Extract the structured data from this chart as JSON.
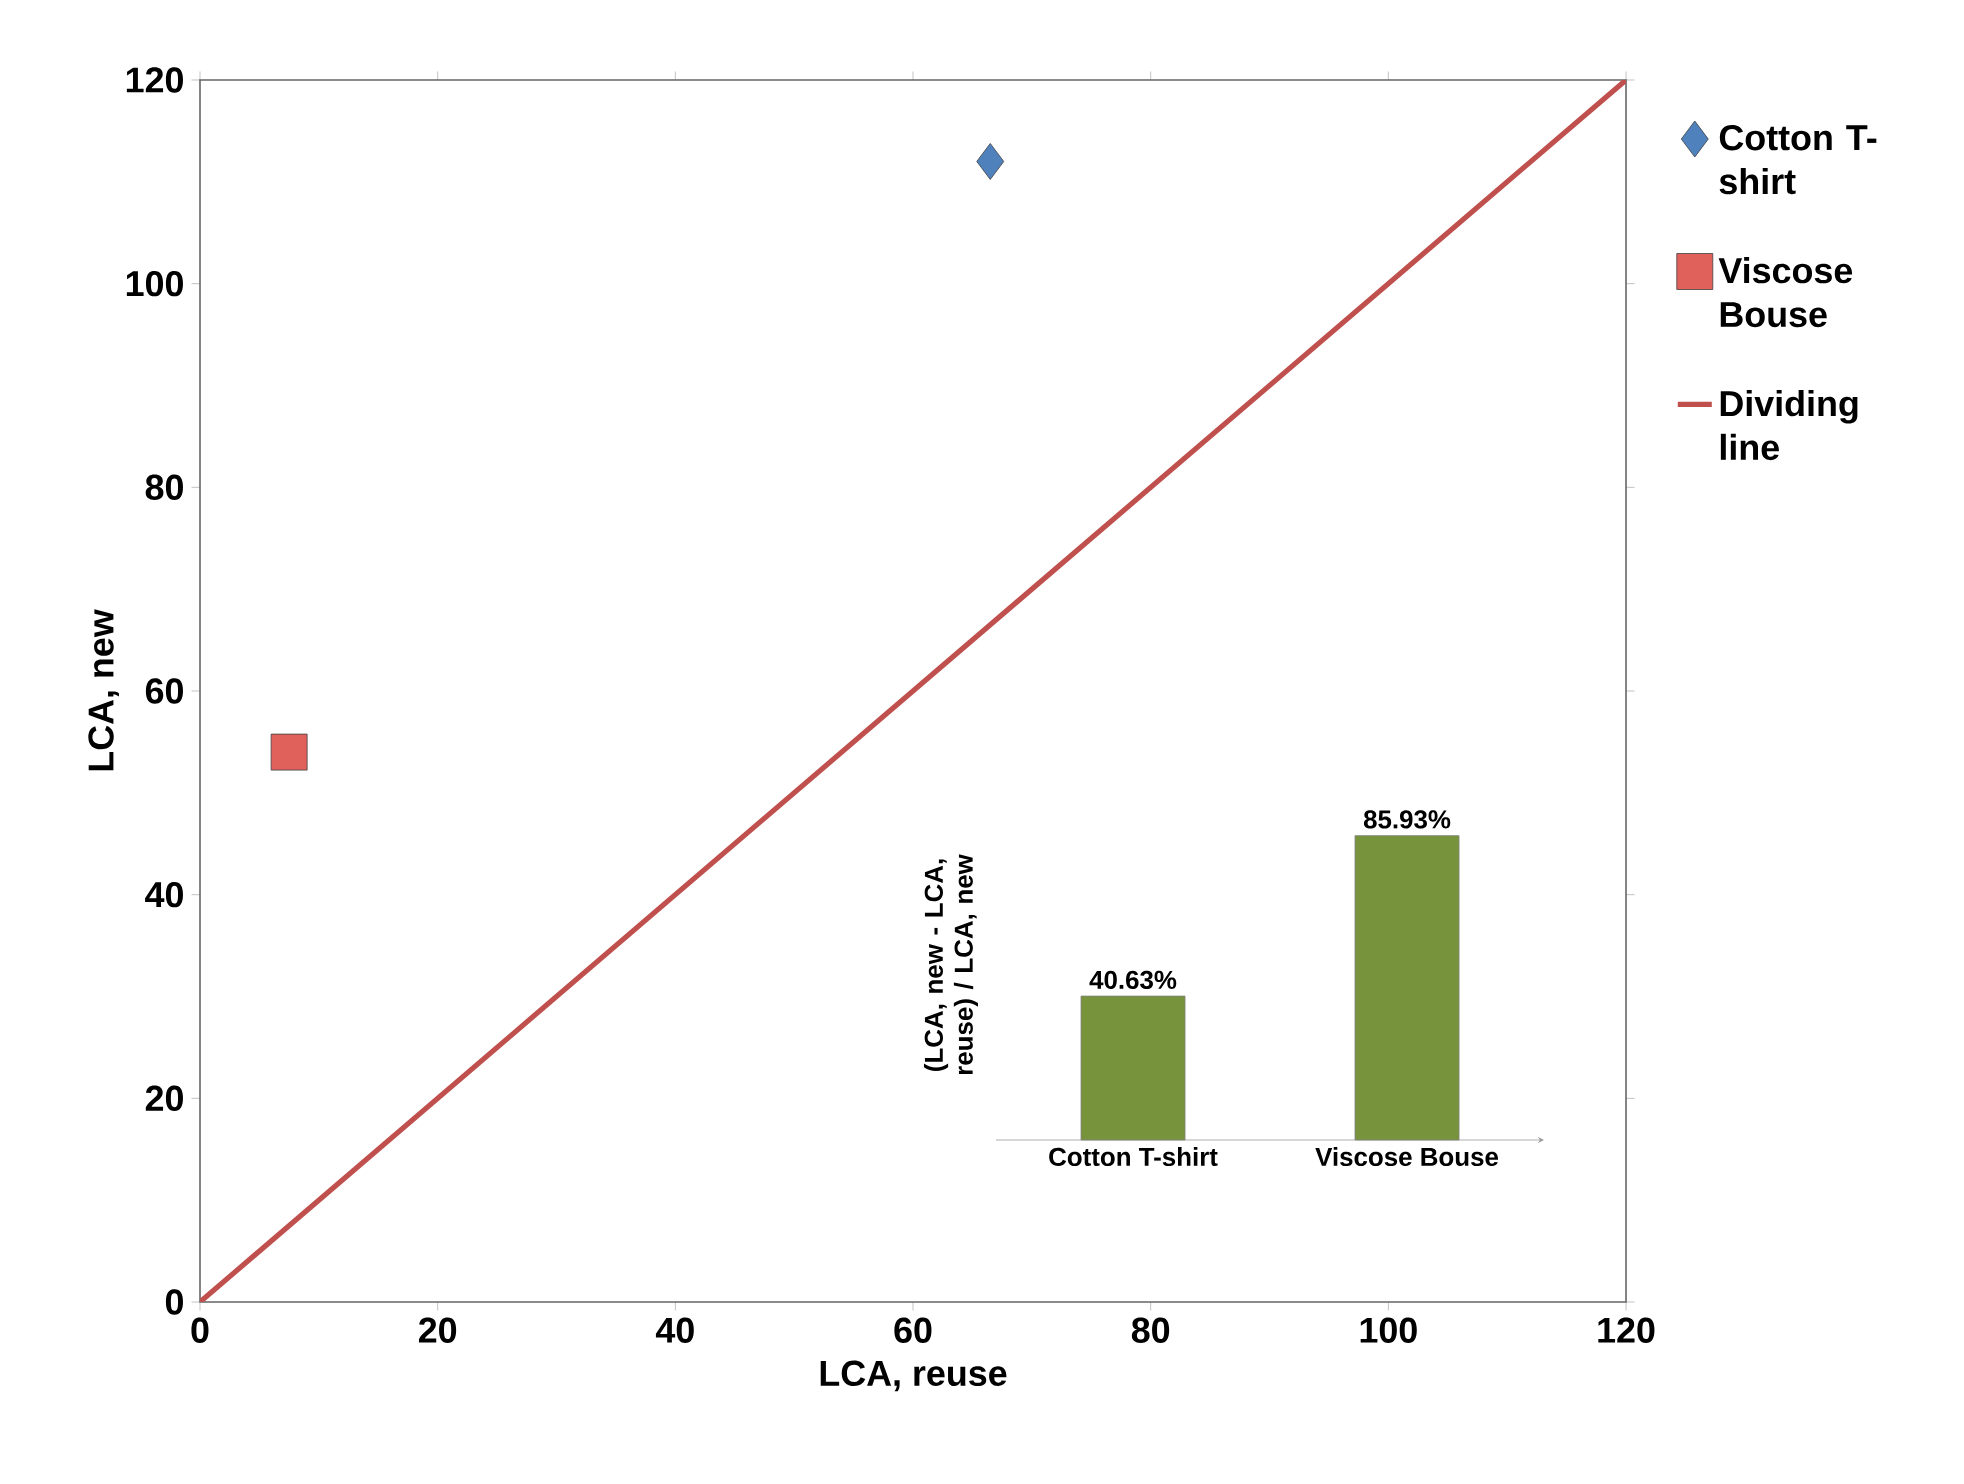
{
  "chart_data": [
    {
      "type": "scatter",
      "xlabel": "LCA, reuse",
      "ylabel": "LCA, new",
      "xlim": [
        0,
        120
      ],
      "ylim": [
        0,
        120
      ],
      "xticks": [
        0,
        20,
        40,
        60,
        80,
        100,
        120
      ],
      "yticks": [
        0,
        20,
        40,
        60,
        80,
        100,
        120
      ],
      "legend": "right",
      "series": [
        {
          "name": "Cotton T-shirt",
          "color": "#4f81bd",
          "marker": "diamond",
          "x": [
            66.5
          ],
          "values": [
            112
          ]
        },
        {
          "name": "Viscose Bouse",
          "color": "#e0605c",
          "marker": "square",
          "x": [
            7.5
          ],
          "values": [
            54
          ]
        },
        {
          "name": "Dividing line",
          "type": "line",
          "color": "#c0504d",
          "marker": "none",
          "line_style": "solid",
          "x": [
            0,
            120
          ],
          "values": [
            0,
            120
          ]
        }
      ]
    },
    {
      "type": "bar",
      "ylabel": "(LCA, new - LCA, reuse) / LCA, new",
      "categories": [
        "Cotton T-shirt",
        "Viscose Bouse"
      ],
      "values": [
        40.63,
        85.93
      ],
      "value_labels": [
        "40.63%",
        "85.93%"
      ],
      "color": "#77933c",
      "tick_labels": "x"
    }
  ]
}
